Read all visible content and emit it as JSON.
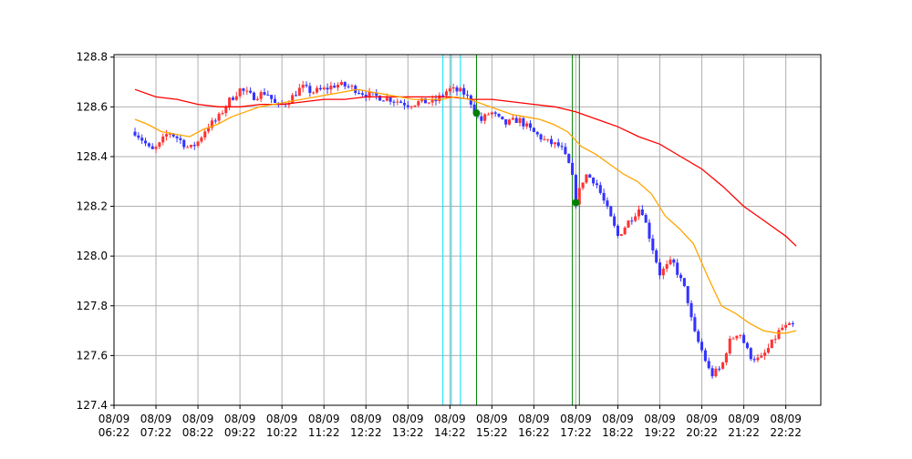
{
  "chart_data": {
    "type": "candlestick",
    "title": "",
    "xlabel": "",
    "ylabel": "",
    "ylim": [
      127.4,
      128.81
    ],
    "yticks": [
      127.4,
      127.6,
      127.8,
      128.0,
      128.2,
      128.4,
      128.6,
      128.8
    ],
    "ytick_labels": [
      "127.4",
      "127.6",
      "127.8",
      "128.0",
      "128.2",
      "128.4",
      "128.6",
      "128.8"
    ],
    "xlim": [
      "06:22",
      "23:12"
    ],
    "xticks": [
      "06:22",
      "07:22",
      "08:22",
      "09:22",
      "10:22",
      "11:22",
      "12:22",
      "13:22",
      "14:22",
      "15:22",
      "16:22",
      "17:22",
      "18:22",
      "19:22",
      "20:22",
      "21:22",
      "22:22"
    ],
    "xtick_labels": [
      [
        "08/09",
        "06:22"
      ],
      [
        "08/09",
        "07:22"
      ],
      [
        "08/09",
        "08:22"
      ],
      [
        "08/09",
        "09:22"
      ],
      [
        "08/09",
        "10:22"
      ],
      [
        "08/09",
        "11:22"
      ],
      [
        "08/09",
        "12:22"
      ],
      [
        "08/09",
        "13:22"
      ],
      [
        "08/09",
        "14:22"
      ],
      [
        "08/09",
        "15:22"
      ],
      [
        "08/09",
        "16:22"
      ],
      [
        "08/09",
        "17:22"
      ],
      [
        "08/09",
        "18:22"
      ],
      [
        "08/09",
        "19:22"
      ],
      [
        "08/09",
        "20:22"
      ],
      [
        "08/09",
        "21:22"
      ],
      [
        "08/09",
        "22:22"
      ]
    ],
    "grid": true,
    "candle_interval_minutes": 5,
    "up_color": "#ff3333",
    "down_color": "#3333ff",
    "close_path": [
      [
        "06:52",
        128.5
      ],
      [
        "07:05",
        128.46
      ],
      [
        "07:15",
        128.42
      ],
      [
        "07:25",
        128.44
      ],
      [
        "07:40",
        128.5
      ],
      [
        "07:55",
        128.47
      ],
      [
        "08:10",
        128.43
      ],
      [
        "08:22",
        128.46
      ],
      [
        "08:35",
        128.52
      ],
      [
        "08:50",
        128.55
      ],
      [
        "09:05",
        128.62
      ],
      [
        "09:22",
        128.67
      ],
      [
        "09:40",
        128.64
      ],
      [
        "10:00",
        128.66
      ],
      [
        "10:15",
        128.6
      ],
      [
        "10:30",
        128.62
      ],
      [
        "10:50",
        128.68
      ],
      [
        "11:05",
        128.66
      ],
      [
        "11:22",
        128.67
      ],
      [
        "11:40",
        128.69
      ],
      [
        "12:00",
        128.68
      ],
      [
        "12:22",
        128.65
      ],
      [
        "12:40",
        128.64
      ],
      [
        "13:00",
        128.63
      ],
      [
        "13:22",
        128.61
      ],
      [
        "13:40",
        128.62
      ],
      [
        "14:00",
        128.62
      ],
      [
        "14:20",
        128.67
      ],
      [
        "14:40",
        128.66
      ],
      [
        "14:50",
        128.63
      ],
      [
        "15:05",
        128.54
      ],
      [
        "15:20",
        128.58
      ],
      [
        "15:40",
        128.53
      ],
      [
        "16:00",
        128.55
      ],
      [
        "16:20",
        128.5
      ],
      [
        "16:40",
        128.46
      ],
      [
        "17:00",
        128.44
      ],
      [
        "17:15",
        128.35
      ],
      [
        "17:22",
        128.22
      ],
      [
        "17:35",
        128.33
      ],
      [
        "17:50",
        128.3
      ],
      [
        "18:05",
        128.2
      ],
      [
        "18:22",
        128.08
      ],
      [
        "18:40",
        128.15
      ],
      [
        "18:55",
        128.2
      ],
      [
        "19:10",
        128.05
      ],
      [
        "19:22",
        127.93
      ],
      [
        "19:40",
        127.98
      ],
      [
        "20:00",
        127.85
      ],
      [
        "20:10",
        127.7
      ],
      [
        "20:22",
        127.62
      ],
      [
        "20:35",
        127.52
      ],
      [
        "20:50",
        127.55
      ],
      [
        "21:00",
        127.65
      ],
      [
        "21:15",
        127.7
      ],
      [
        "21:30",
        127.6
      ],
      [
        "21:45",
        127.58
      ],
      [
        "22:00",
        127.64
      ],
      [
        "22:15",
        127.71
      ],
      [
        "22:35",
        127.72
      ]
    ],
    "series": [
      {
        "name": "",
        "color": "#ff0000",
        "points": [
          [
            "06:52",
            128.67
          ],
          [
            "07:22",
            128.64
          ],
          [
            "07:52",
            128.63
          ],
          [
            "08:22",
            128.61
          ],
          [
            "08:52",
            128.6
          ],
          [
            "09:22",
            128.6
          ],
          [
            "09:52",
            128.61
          ],
          [
            "10:22",
            128.61
          ],
          [
            "10:52",
            128.62
          ],
          [
            "11:22",
            128.63
          ],
          [
            "11:52",
            128.63
          ],
          [
            "12:22",
            128.64
          ],
          [
            "12:52",
            128.64
          ],
          [
            "13:22",
            128.64
          ],
          [
            "13:52",
            128.64
          ],
          [
            "14:22",
            128.64
          ],
          [
            "14:52",
            128.63
          ],
          [
            "15:22",
            128.63
          ],
          [
            "15:52",
            128.62
          ],
          [
            "16:22",
            128.61
          ],
          [
            "16:52",
            128.6
          ],
          [
            "17:22",
            128.58
          ],
          [
            "17:52",
            128.55
          ],
          [
            "18:22",
            128.52
          ],
          [
            "18:52",
            128.48
          ],
          [
            "19:22",
            128.45
          ],
          [
            "19:52",
            128.4
          ],
          [
            "20:22",
            128.35
          ],
          [
            "20:52",
            128.28
          ],
          [
            "21:22",
            128.2
          ],
          [
            "21:52",
            128.14
          ],
          [
            "22:22",
            128.08
          ],
          [
            "22:37",
            128.04
          ]
        ]
      },
      {
        "name": "",
        "color": "#ffa500",
        "points": [
          [
            "06:52",
            128.55
          ],
          [
            "07:10",
            128.53
          ],
          [
            "07:30",
            128.5
          ],
          [
            "07:50",
            128.49
          ],
          [
            "08:10",
            128.48
          ],
          [
            "08:30",
            128.51
          ],
          [
            "08:50",
            128.53
          ],
          [
            "09:10",
            128.56
          ],
          [
            "09:30",
            128.58
          ],
          [
            "09:50",
            128.6
          ],
          [
            "10:10",
            128.61
          ],
          [
            "10:30",
            128.62
          ],
          [
            "10:50",
            128.63
          ],
          [
            "11:10",
            128.64
          ],
          [
            "11:30",
            128.65
          ],
          [
            "11:50",
            128.66
          ],
          [
            "12:10",
            128.67
          ],
          [
            "12:30",
            128.66
          ],
          [
            "12:50",
            128.65
          ],
          [
            "13:10",
            128.64
          ],
          [
            "13:30",
            128.63
          ],
          [
            "13:50",
            128.63
          ],
          [
            "14:10",
            128.63
          ],
          [
            "14:30",
            128.64
          ],
          [
            "14:50",
            128.63
          ],
          [
            "15:10",
            128.61
          ],
          [
            "15:30",
            128.59
          ],
          [
            "15:50",
            128.57
          ],
          [
            "16:10",
            128.56
          ],
          [
            "16:30",
            128.55
          ],
          [
            "16:50",
            128.53
          ],
          [
            "17:10",
            128.5
          ],
          [
            "17:30",
            128.44
          ],
          [
            "17:50",
            128.41
          ],
          [
            "18:10",
            128.37
          ],
          [
            "18:30",
            128.33
          ],
          [
            "18:50",
            128.3
          ],
          [
            "19:10",
            128.25
          ],
          [
            "19:30",
            128.16
          ],
          [
            "19:50",
            128.11
          ],
          [
            "20:10",
            128.05
          ],
          [
            "20:30",
            127.92
          ],
          [
            "20:50",
            127.8
          ],
          [
            "21:10",
            127.77
          ],
          [
            "21:30",
            127.73
          ],
          [
            "21:50",
            127.7
          ],
          [
            "22:10",
            127.69
          ],
          [
            "22:22",
            127.69
          ],
          [
            "22:37",
            127.7
          ]
        ]
      }
    ],
    "vlines": [
      {
        "time": "14:12",
        "color": "#00e0ff"
      },
      {
        "time": "14:24",
        "color": "#00e0ff"
      },
      {
        "time": "14:37",
        "color": "#00e0ff"
      },
      {
        "time": "15:00",
        "color": "#008000"
      },
      {
        "time": "17:17",
        "color": "#008000"
      },
      {
        "time": "17:27",
        "color": "#008000"
      }
    ],
    "markers": [
      {
        "time": "15:00",
        "value": 128.575,
        "color": "#008000"
      },
      {
        "time": "17:22",
        "value": 128.215,
        "color": "#008000"
      }
    ]
  }
}
